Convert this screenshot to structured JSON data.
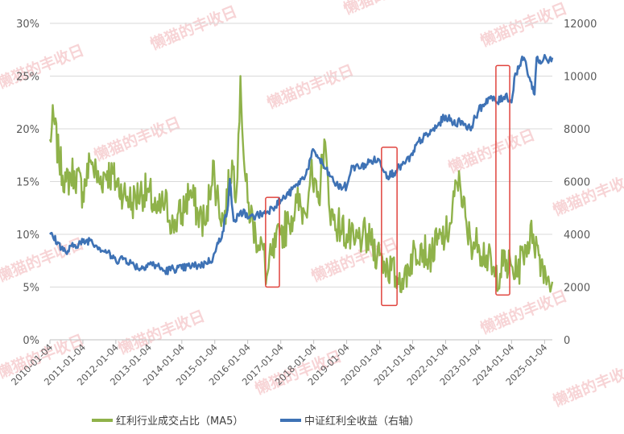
{
  "watermark_text": "懒猫的丰收日",
  "chart_data": {
    "type": "line",
    "title": "",
    "xlabel": "",
    "ylabel_left": "",
    "ylabel_right": "",
    "x_start": "2010-01-04",
    "x_end": "2025-03-31",
    "x_ticks": [
      "2010-01-04",
      "2011-01-04",
      "2012-01-04",
      "2013-01-04",
      "2014-01-04",
      "2015-01-04",
      "2016-01-04",
      "2017-01-04",
      "2018-01-04",
      "2019-01-04",
      "2020-01-04",
      "2021-01-04",
      "2022-01-04",
      "2023-01-04",
      "2024-01-04",
      "2025-01-04"
    ],
    "y_left": {
      "min": 0,
      "max": 0.3,
      "ticks": [
        "0%",
        "5%",
        "10%",
        "15%",
        "20%",
        "25%",
        "30%"
      ]
    },
    "y_right": {
      "min": 0,
      "max": 12000,
      "ticks": [
        "0",
        "2000",
        "4000",
        "6000",
        "8000",
        "10000",
        "12000"
      ]
    },
    "grid": true,
    "legend_position": "bottom",
    "series": [
      {
        "name": "红利行业成交占比（MA5）",
        "axis": "left",
        "color": "#8fb24a",
        "points": [
          [
            "2010-01-04",
            0.19
          ],
          [
            "2010-02-15",
            0.21
          ],
          [
            "2010-04-15",
            0.17
          ],
          [
            "2010-07-01",
            0.15
          ],
          [
            "2010-10-01",
            0.16
          ],
          [
            "2011-01-04",
            0.14
          ],
          [
            "2011-04-01",
            0.17
          ],
          [
            "2011-07-01",
            0.15
          ],
          [
            "2011-10-01",
            0.16
          ],
          [
            "2012-01-04",
            0.15
          ],
          [
            "2012-04-01",
            0.14
          ],
          [
            "2012-07-01",
            0.13
          ],
          [
            "2012-10-01",
            0.14
          ],
          [
            "2013-01-04",
            0.14
          ],
          [
            "2013-04-01",
            0.12
          ],
          [
            "2013-07-01",
            0.13
          ],
          [
            "2013-10-01",
            0.11
          ],
          [
            "2014-01-04",
            0.12
          ],
          [
            "2014-04-01",
            0.14
          ],
          [
            "2014-07-01",
            0.12
          ],
          [
            "2014-10-01",
            0.11
          ],
          [
            "2014-12-15",
            0.17
          ],
          [
            "2015-01-04",
            0.15
          ],
          [
            "2015-02-15",
            0.13
          ],
          [
            "2015-04-15",
            0.11
          ],
          [
            "2015-07-15",
            0.17
          ],
          [
            "2015-09-01",
            0.14
          ],
          [
            "2015-10-15",
            0.25
          ],
          [
            "2015-12-01",
            0.16
          ],
          [
            "2016-01-04",
            0.13
          ],
          [
            "2016-04-01",
            0.1
          ],
          [
            "2016-06-15",
            0.09
          ],
          [
            "2016-08-01",
            0.06
          ],
          [
            "2016-10-01",
            0.08
          ],
          [
            "2017-01-04",
            0.1
          ],
          [
            "2017-04-01",
            0.11
          ],
          [
            "2017-07-01",
            0.13
          ],
          [
            "2017-10-01",
            0.12
          ],
          [
            "2017-12-01",
            0.16
          ],
          [
            "2018-01-04",
            0.14
          ],
          [
            "2018-03-01",
            0.13
          ],
          [
            "2018-05-01",
            0.19
          ],
          [
            "2018-07-01",
            0.12
          ],
          [
            "2018-10-01",
            0.11
          ],
          [
            "2019-01-04",
            0.1
          ],
          [
            "2019-04-01",
            0.09
          ],
          [
            "2019-07-01",
            0.1
          ],
          [
            "2019-10-01",
            0.09
          ],
          [
            "2020-01-04",
            0.08
          ],
          [
            "2020-04-01",
            0.07
          ],
          [
            "2020-07-01",
            0.06
          ],
          [
            "2020-10-01",
            0.06
          ],
          [
            "2021-01-04",
            0.08
          ],
          [
            "2021-04-01",
            0.09
          ],
          [
            "2021-07-01",
            0.08
          ],
          [
            "2021-10-01",
            0.09
          ],
          [
            "2022-01-04",
            0.1
          ],
          [
            "2022-03-01",
            0.11
          ],
          [
            "2022-06-01",
            0.16
          ],
          [
            "2022-09-01",
            0.1
          ],
          [
            "2022-12-01",
            0.09
          ],
          [
            "2023-01-04",
            0.09
          ],
          [
            "2023-04-01",
            0.08
          ],
          [
            "2023-07-01",
            0.06
          ],
          [
            "2023-10-01",
            0.07
          ],
          [
            "2024-01-04",
            0.07
          ],
          [
            "2024-03-01",
            0.06
          ],
          [
            "2024-06-01",
            0.09
          ],
          [
            "2024-09-01",
            0.1
          ],
          [
            "2024-11-01",
            0.08
          ],
          [
            "2025-01-04",
            0.07
          ],
          [
            "2025-02-15",
            0.06
          ],
          [
            "2025-03-31",
            0.055
          ]
        ]
      },
      {
        "name": "中证红利全收益（右轴）",
        "axis": "right",
        "color": "#3e72b5",
        "points": [
          [
            "2010-01-04",
            4000
          ],
          [
            "2010-04-01",
            3700
          ],
          [
            "2010-07-01",
            3300
          ],
          [
            "2010-10-01",
            3600
          ],
          [
            "2011-01-04",
            3700
          ],
          [
            "2011-04-01",
            3800
          ],
          [
            "2011-07-01",
            3500
          ],
          [
            "2011-10-01",
            3300
          ],
          [
            "2012-01-04",
            3000
          ],
          [
            "2012-04-01",
            3100
          ],
          [
            "2012-07-01",
            2900
          ],
          [
            "2012-10-01",
            2700
          ],
          [
            "2013-01-04",
            2900
          ],
          [
            "2013-04-01",
            2800
          ],
          [
            "2013-07-01",
            2600
          ],
          [
            "2013-10-01",
            2700
          ],
          [
            "2014-01-04",
            2700
          ],
          [
            "2014-04-01",
            2800
          ],
          [
            "2014-07-01",
            2800
          ],
          [
            "2014-10-01",
            2900
          ],
          [
            "2014-12-15",
            3100
          ],
          [
            "2015-01-04",
            3300
          ],
          [
            "2015-04-01",
            4100
          ],
          [
            "2015-06-01",
            5100
          ],
          [
            "2015-06-20",
            6100
          ],
          [
            "2015-08-01",
            4500
          ],
          [
            "2015-10-01",
            4700
          ],
          [
            "2015-12-01",
            4900
          ],
          [
            "2016-01-04",
            4600
          ],
          [
            "2016-04-01",
            4700
          ],
          [
            "2016-07-01",
            4800
          ],
          [
            "2016-10-01",
            5000
          ],
          [
            "2017-01-04",
            5300
          ],
          [
            "2017-04-01",
            5500
          ],
          [
            "2017-07-01",
            5900
          ],
          [
            "2017-10-01",
            6200
          ],
          [
            "2018-01-04",
            7200
          ],
          [
            "2018-03-01",
            6900
          ],
          [
            "2018-07-01",
            6200
          ],
          [
            "2018-10-01",
            5800
          ],
          [
            "2019-01-04",
            5800
          ],
          [
            "2019-03-01",
            6600
          ],
          [
            "2019-06-01",
            6500
          ],
          [
            "2019-10-01",
            6800
          ],
          [
            "2020-01-04",
            6800
          ],
          [
            "2020-04-01",
            6200
          ],
          [
            "2020-07-01",
            6400
          ],
          [
            "2020-10-01",
            6700
          ],
          [
            "2021-01-04",
            7000
          ],
          [
            "2021-03-01",
            7500
          ],
          [
            "2021-07-01",
            7800
          ],
          [
            "2021-10-01",
            8100
          ],
          [
            "2022-01-04",
            8500
          ],
          [
            "2022-04-01",
            8200
          ],
          [
            "2022-07-01",
            8300
          ],
          [
            "2022-10-01",
            8000
          ],
          [
            "2023-01-04",
            8700
          ],
          [
            "2023-05-01",
            9200
          ],
          [
            "2023-08-01",
            9000
          ],
          [
            "2023-11-01",
            9300
          ],
          [
            "2024-01-04",
            9000
          ],
          [
            "2024-02-15",
            10100
          ],
          [
            "2024-05-20",
            10700
          ],
          [
            "2024-08-01",
            9800
          ],
          [
            "2024-09-15",
            9300
          ],
          [
            "2024-10-08",
            10700
          ],
          [
            "2024-12-01",
            10500
          ],
          [
            "2025-01-04",
            10800
          ],
          [
            "2025-02-15",
            10500
          ],
          [
            "2025-03-31",
            10700
          ]
        ]
      }
    ],
    "highlight_boxes": [
      {
        "x_from": "2016-07-20",
        "x_to": "2016-12-20",
        "y_from_right": 2000,
        "y_to_right": 5400
      },
      {
        "x_from": "2020-01-25",
        "x_to": "2020-07-15",
        "y_from_right": 1300,
        "y_to_right": 7300
      },
      {
        "x_from": "2023-07-15",
        "x_to": "2023-12-15",
        "y_from_right": 1700,
        "y_to_right": 10400
      }
    ]
  }
}
